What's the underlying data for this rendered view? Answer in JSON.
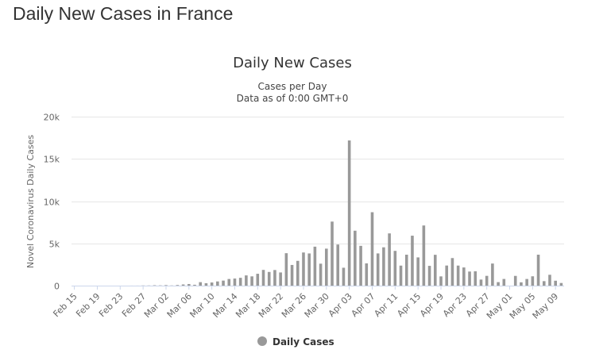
{
  "page": {
    "title": "Daily New Cases in France"
  },
  "chart_data": {
    "type": "bar",
    "title": "Daily New Cases",
    "subtitle_line1": "Cases per Day",
    "subtitle_line2": "Data as of 0:00 GMT+0",
    "ylabel": "Novel Coronavirus Daily Cases",
    "xlabel": "",
    "ylim": [
      0,
      20000
    ],
    "yticks": [
      {
        "value": 0,
        "label": "0"
      },
      {
        "value": 5000,
        "label": "5k"
      },
      {
        "value": 10000,
        "label": "10k"
      },
      {
        "value": 15000,
        "label": "15k"
      },
      {
        "value": 20000,
        "label": "20k"
      }
    ],
    "xtick_labels": [
      "Feb 15",
      "Feb 19",
      "Feb 23",
      "Feb 27",
      "Mar 02",
      "Mar 06",
      "Mar 10",
      "Mar 14",
      "Mar 18",
      "Mar 22",
      "Mar 26",
      "Mar 30",
      "Apr 03",
      "Apr 07",
      "Apr 11",
      "Apr 15",
      "Apr 19",
      "Apr 23",
      "Apr 27",
      "May 01",
      "May 05",
      "May 09"
    ],
    "tick_every": 4,
    "grid": true,
    "legend_position": "bottom-center",
    "categories": [
      "Feb 15",
      "Feb 16",
      "Feb 17",
      "Feb 18",
      "Feb 19",
      "Feb 20",
      "Feb 21",
      "Feb 22",
      "Feb 23",
      "Feb 24",
      "Feb 25",
      "Feb 26",
      "Feb 27",
      "Feb 28",
      "Feb 29",
      "Mar 01",
      "Mar 02",
      "Mar 03",
      "Mar 04",
      "Mar 05",
      "Mar 06",
      "Mar 07",
      "Mar 08",
      "Mar 09",
      "Mar 10",
      "Mar 11",
      "Mar 12",
      "Mar 13",
      "Mar 14",
      "Mar 15",
      "Mar 16",
      "Mar 17",
      "Mar 18",
      "Mar 19",
      "Mar 20",
      "Mar 21",
      "Mar 22",
      "Mar 23",
      "Mar 24",
      "Mar 25",
      "Mar 26",
      "Mar 27",
      "Mar 28",
      "Mar 29",
      "Mar 30",
      "Mar 31",
      "Apr 01",
      "Apr 02",
      "Apr 03",
      "Apr 04",
      "Apr 05",
      "Apr 06",
      "Apr 07",
      "Apr 08",
      "Apr 09",
      "Apr 10",
      "Apr 11",
      "Apr 12",
      "Apr 13",
      "Apr 14",
      "Apr 15",
      "Apr 16",
      "Apr 17",
      "Apr 18",
      "Apr 19",
      "Apr 20",
      "Apr 21",
      "Apr 22",
      "Apr 23",
      "Apr 24",
      "Apr 25",
      "Apr 26",
      "Apr 27",
      "Apr 28",
      "Apr 29",
      "Apr 30",
      "May 01",
      "May 02",
      "May 03",
      "May 04",
      "May 05",
      "May 06",
      "May 07",
      "May 08",
      "May 09",
      "May 10"
    ],
    "series": [
      {
        "name": "Daily Cases",
        "color": "#999999",
        "values": [
          0,
          0,
          0,
          0,
          0,
          0,
          0,
          0,
          0,
          0,
          2,
          4,
          20,
          19,
          43,
          30,
          61,
          21,
          73,
          138,
          190,
          103,
          410,
          286,
          372,
          497,
          595,
          785,
          838,
          924,
          1210,
          1097,
          1404,
          1861,
          1617,
          1847,
          1559,
          3838,
          2446,
          2931,
          3922,
          3809,
          4611,
          2599,
          4376,
          7578,
          4861,
          2116,
          17180,
          6500,
          4708,
          2636,
          8688,
          3811,
          4533,
          6180,
          4113,
          2369,
          3661,
          5910,
          3342,
          7117,
          2342,
          3650,
          1094,
          2378,
          3261,
          2372,
          2150,
          1667,
          1702,
          716,
          1156,
          2615,
          414,
          789,
          0,
          1152,
          391,
          786,
          1104,
          3663,
          531,
          1284,
          581,
          312
        ]
      }
    ]
  }
}
